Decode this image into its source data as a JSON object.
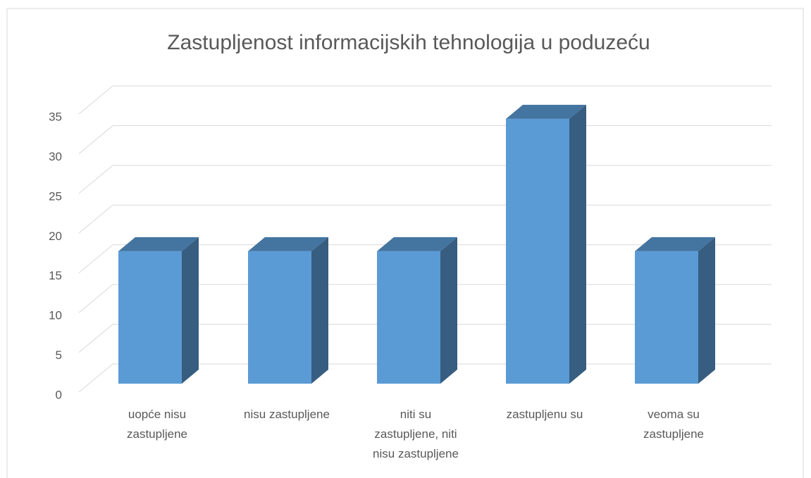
{
  "chart_data": {
    "type": "bar3d",
    "title": "Zastupljenost informacijskih tehnologija u poduzeću",
    "categories": [
      "uopće nisu zastupljene",
      "nisu zastupljene",
      "niti su zastupljene, niti nisu zastupljene",
      "zastupljenu su",
      "veoma su zastupljene"
    ],
    "values": [
      16.67,
      16.67,
      16.67,
      33.33,
      16.67
    ],
    "color": "#5b9bd5",
    "ylim": [
      0,
      35
    ],
    "yticks": [
      0,
      5,
      10,
      15,
      20,
      25,
      30,
      35
    ],
    "grid": true
  }
}
